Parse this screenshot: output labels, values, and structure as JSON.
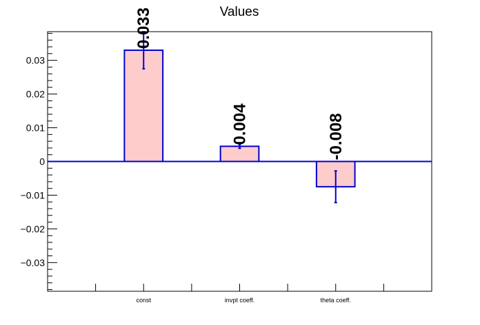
{
  "chart_data": {
    "type": "bar",
    "title": "Values",
    "xlabel": "",
    "ylabel": "",
    "categories": [
      "const",
      "invpt coeff.",
      "theta coeff."
    ],
    "values": [
      0.033,
      0.0045,
      -0.0075
    ],
    "errors": [
      0.0055,
      0.0006,
      0.0047
    ],
    "data_labels": [
      "0.033",
      "0.004",
      "-0.008"
    ],
    "ylim": [
      -0.0385,
      0.0385
    ],
    "yticks": [
      -0.03,
      -0.02,
      -0.01,
      0,
      0.01,
      0.02,
      0.03
    ],
    "ytick_labels": [
      "−0.03",
      "−0.02",
      "−0.01",
      "0",
      "0.01",
      "0.02",
      "0.03"
    ],
    "grid": false,
    "legend": "none",
    "colors": {
      "bar_fill": "#ffcccc",
      "bar_edge": "#0000cc",
      "baseline": "#0000cc",
      "error": "#0000cc",
      "axis": "#000000"
    }
  }
}
